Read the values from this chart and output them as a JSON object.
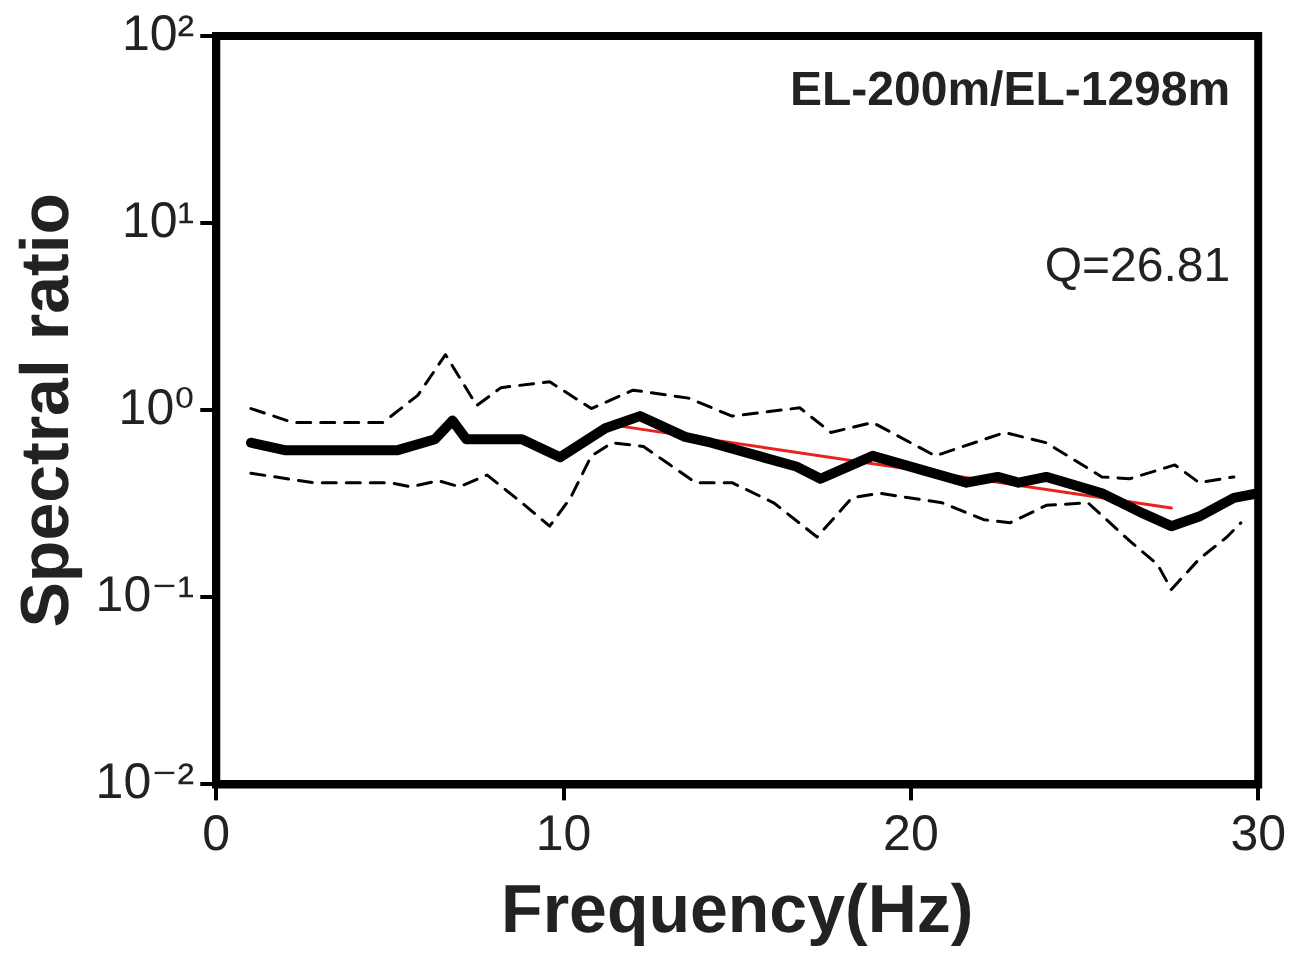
{
  "chart_data": {
    "type": "line",
    "xlabel": "Frequency(Hz)",
    "ylabel": "Spectral ratio",
    "log": "y",
    "grid": false,
    "legend": false,
    "marker": "none",
    "xlim": [
      0,
      30
    ],
    "xticks": [
      0,
      10,
      20,
      30
    ],
    "ylim": [
      0.01,
      100
    ],
    "yticks": [
      {
        "value": 0.01,
        "label": "10⁻²"
      },
      {
        "value": 0.1,
        "label": "10⁻¹"
      },
      {
        "value": 1,
        "label": "10⁰"
      },
      {
        "value": 10,
        "label": "10¹"
      },
      {
        "value": 100,
        "label": "10²"
      }
    ],
    "annotations": [
      "EL-200m/EL-1298m",
      "Q=26.81"
    ],
    "series": [
      {
        "color": "#000000",
        "line_style": "solid",
        "x": [
          1,
          2,
          5.2,
          6.3,
          6.8,
          7.2,
          8.8,
          9.9,
          11.2,
          12.2,
          13.5,
          14.25,
          16.7,
          17.4,
          18.9,
          21.6,
          22.5,
          23.1,
          23.9,
          25.5,
          26.7,
          27.5,
          28.3,
          29.3,
          30
        ],
        "values": [
          0.67,
          0.61,
          0.61,
          0.7,
          0.88,
          0.7,
          0.7,
          0.56,
          0.8,
          0.93,
          0.72,
          0.67,
          0.5,
          0.43,
          0.57,
          0.41,
          0.44,
          0.41,
          0.44,
          0.36,
          0.28,
          0.24,
          0.27,
          0.34,
          0.36
        ]
      },
      {
        "color": "#000000",
        "line_style": "dashed",
        "x": [
          1,
          2.2,
          4.8,
          5.8,
          6.6,
          7.5,
          8.2,
          9.6,
          10.8,
          12,
          13.6,
          14.85,
          16.8,
          17.7,
          18.9,
          20.7,
          22.7,
          23.9,
          25.5,
          26.3,
          27.6,
          28.3,
          29.3
        ],
        "values": [
          1.02,
          0.86,
          0.86,
          1.2,
          1.98,
          1.06,
          1.32,
          1.42,
          1.02,
          1.28,
          1.16,
          0.93,
          1.03,
          0.76,
          0.86,
          0.57,
          0.76,
          0.67,
          0.44,
          0.43,
          0.51,
          0.41,
          0.44
        ]
      },
      {
        "color": "#000000",
        "line_style": "dashed",
        "x": [
          1,
          2.8,
          5,
          5.6,
          6.4,
          7,
          7.8,
          8.8,
          9.6,
          10.2,
          10.8,
          11.4,
          12.3,
          13,
          13.8,
          14.85,
          16.05,
          17.3,
          18.3,
          19.1,
          20.9,
          22.1,
          22.85,
          23.9,
          25.1,
          26.3,
          27.1,
          27.5,
          28.3,
          29.1,
          29.5
        ],
        "values": [
          0.46,
          0.41,
          0.41,
          0.39,
          0.42,
          0.39,
          0.45,
          0.32,
          0.24,
          0.34,
          0.57,
          0.67,
          0.64,
          0.52,
          0.41,
          0.41,
          0.32,
          0.21,
          0.34,
          0.36,
          0.32,
          0.26,
          0.25,
          0.31,
          0.32,
          0.2,
          0.15,
          0.11,
          0.16,
          0.21,
          0.25
        ]
      },
      {
        "type": "line",
        "color": "#e8231e",
        "line_style": "solid",
        "x": [
          11.3,
          27.5
        ],
        "values": [
          0.84,
          0.3
        ]
      }
    ]
  }
}
